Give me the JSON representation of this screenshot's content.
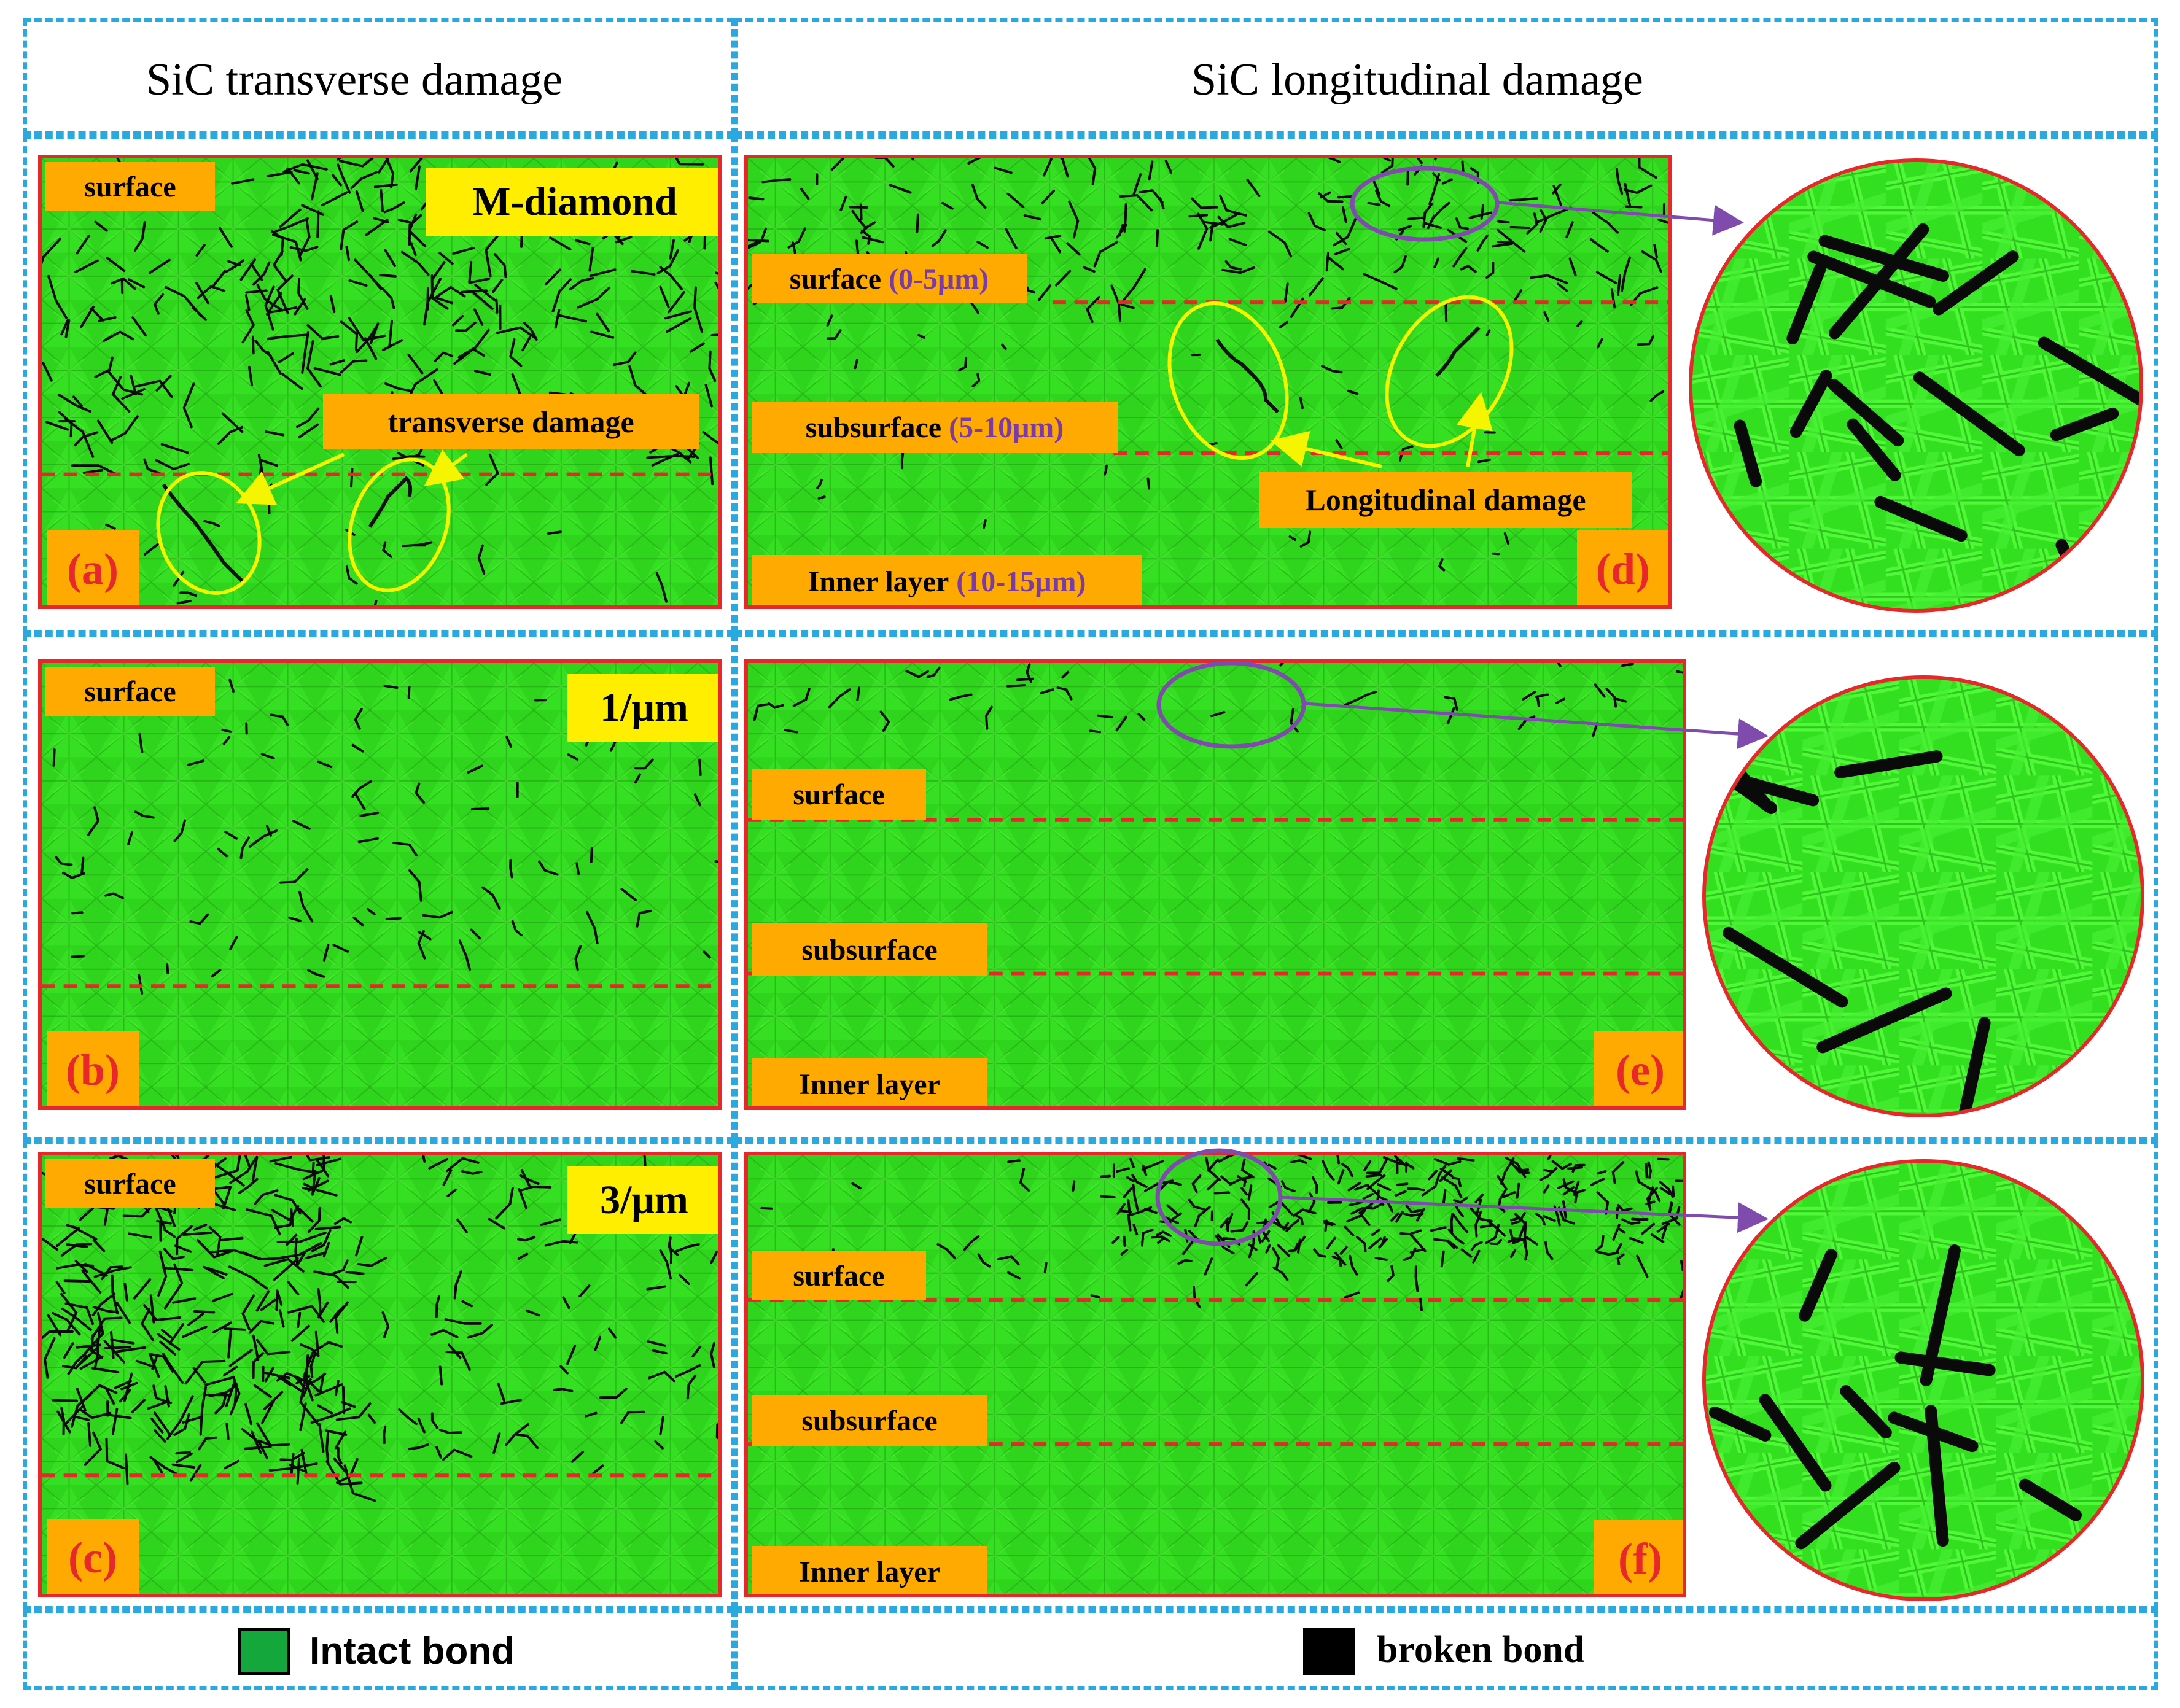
{
  "headers": {
    "left": "SiC transverse damage",
    "right": "SiC longitudinal damage"
  },
  "colors": {
    "intact": "#33e020",
    "broken": "#0a0a0a",
    "frame": "#2aa8e0",
    "panel_border": "#e8272a",
    "tag_orange": "#ffaa00",
    "tag_yellow": "#ffee00",
    "range_purple": "#7a3aa8",
    "annotation_yellow": "#f5f500",
    "zoom_purple": "#7f4cae"
  },
  "panels": {
    "a": {
      "letter": "(a)",
      "corner": "M-diamond",
      "surface": "surface",
      "annotation": "transverse damage"
    },
    "b": {
      "letter": "(b)",
      "corner": "1/μm",
      "surface": "surface"
    },
    "c": {
      "letter": "(c)",
      "corner": "3/μm",
      "surface": "surface"
    },
    "d": {
      "letter": "(d)",
      "surface": "surface",
      "surface_range": "(0-5μm)",
      "subsurface": "subsurface",
      "subsurface_range": "(5-10μm)",
      "inner": "Inner layer",
      "inner_range": "(10-15μm)",
      "annotation": "Longitudinal damage"
    },
    "e": {
      "letter": "(e)",
      "surface": "surface",
      "subsurface": "subsurface",
      "inner": "Inner layer"
    },
    "f": {
      "letter": "(f)",
      "surface": "surface",
      "subsurface": "subsurface",
      "inner": "Inner layer"
    }
  },
  "legend": {
    "intact": "Intact bond",
    "broken": "broken bond"
  }
}
